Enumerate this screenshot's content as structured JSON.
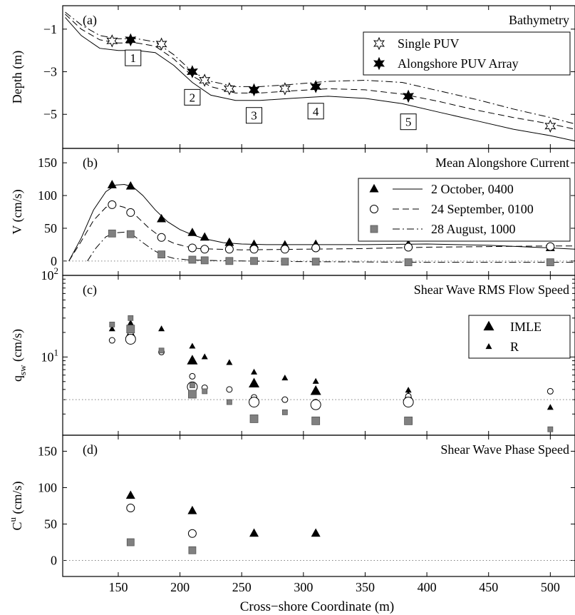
{
  "figure": {
    "xlabel": "Cross−shore Coordinate (m)",
    "xlim": [
      105,
      520
    ],
    "xticks": [
      150,
      200,
      250,
      300,
      350,
      400,
      450,
      500
    ],
    "colors": {
      "marker_open_fill": "#ffffff",
      "marker_gray": "#808080",
      "marker_black": "#000000",
      "zero_line": "#808080"
    }
  },
  "chart_data": [
    {
      "panel": "(a)",
      "type": "line",
      "title": "Bathymetry",
      "ylabel": "Depth (m)",
      "ylim": [
        -6.6,
        0.1
      ],
      "yticks": [
        -1,
        -3,
        -5
      ],
      "legend_placement": "top-right",
      "legend": [
        {
          "marker": "open-star",
          "label": "Single PUV"
        },
        {
          "marker": "filled-star",
          "label": "Alongshore PUV Array"
        }
      ],
      "profiles": [
        {
          "style": "solid",
          "x": [
            107,
            120,
            135,
            150,
            165,
            180,
            195,
            210,
            225,
            245,
            265,
            290,
            320,
            350,
            380,
            410,
            440,
            470,
            500,
            520
          ],
          "y": [
            -0.45,
            -1.3,
            -1.9,
            -2.0,
            -2.0,
            -2.1,
            -2.7,
            -3.5,
            -4.1,
            -4.35,
            -4.35,
            -4.25,
            -4.15,
            -4.25,
            -4.5,
            -4.9,
            -5.3,
            -5.7,
            -6.0,
            -6.25
          ]
        },
        {
          "style": "dashed",
          "x": [
            107,
            120,
            135,
            150,
            165,
            180,
            195,
            210,
            225,
            245,
            265,
            290,
            320,
            350,
            380,
            410,
            440,
            470,
            500,
            520
          ],
          "y": [
            -0.3,
            -1.0,
            -1.5,
            -1.65,
            -1.65,
            -1.8,
            -2.4,
            -3.2,
            -3.7,
            -4.0,
            -4.0,
            -3.9,
            -3.8,
            -3.85,
            -4.05,
            -4.4,
            -4.8,
            -5.15,
            -5.45,
            -5.7
          ]
        },
        {
          "style": "dashdot",
          "x": [
            107,
            120,
            135,
            150,
            165,
            180,
            195,
            210,
            225,
            245,
            265,
            290,
            320,
            350,
            380,
            410,
            440,
            470,
            500,
            520
          ],
          "y": [
            -0.2,
            -0.8,
            -1.3,
            -1.45,
            -1.45,
            -1.6,
            -2.2,
            -3.0,
            -3.45,
            -3.7,
            -3.7,
            -3.6,
            -3.45,
            -3.4,
            -3.5,
            -3.9,
            -4.3,
            -4.75,
            -5.15,
            -5.45
          ]
        }
      ],
      "single_puv": [
        {
          "x": 145,
          "y": -1.55
        },
        {
          "x": 185,
          "y": -1.7
        },
        {
          "x": 220,
          "y": -3.4
        },
        {
          "x": 240,
          "y": -3.8
        },
        {
          "x": 285,
          "y": -3.8
        },
        {
          "x": 500,
          "y": -5.55
        }
      ],
      "array_puv": [
        {
          "x": 160,
          "y": -1.5
        },
        {
          "x": 210,
          "y": -3.0
        },
        {
          "x": 260,
          "y": -3.85
        },
        {
          "x": 310,
          "y": -3.7
        },
        {
          "x": 385,
          "y": -4.15
        }
      ],
      "annotations": [
        {
          "text": "1",
          "x": 162,
          "y": -2.35
        },
        {
          "text": "2",
          "x": 210,
          "y": -4.2
        },
        {
          "text": "3",
          "x": 260,
          "y": -5.05
        },
        {
          "text": "4",
          "x": 310,
          "y": -4.85
        },
        {
          "text": "5",
          "x": 385,
          "y": -5.35
        }
      ]
    },
    {
      "panel": "(b)",
      "type": "line",
      "title": "Mean Alongshore Current",
      "ylabel": "V (cm/s)",
      "ylim": [
        -22,
        172
      ],
      "yticks": [
        0,
        50,
        100,
        150
      ],
      "legend_placement": "top-right",
      "series": [
        {
          "name": "2 October, 0400",
          "marker": "filled-triangle",
          "style": "solid",
          "points": [
            {
              "x": 145,
              "y": 116
            },
            {
              "x": 160,
              "y": 114
            },
            {
              "x": 185,
              "y": 64
            },
            {
              "x": 210,
              "y": 43
            },
            {
              "x": 220,
              "y": 36
            },
            {
              "x": 240,
              "y": 28
            },
            {
              "x": 260,
              "y": 25
            },
            {
              "x": 285,
              "y": 24
            },
            {
              "x": 310,
              "y": 25
            },
            {
              "x": 385,
              "y": 25
            },
            {
              "x": 500,
              "y": 20
            }
          ],
          "curve": {
            "x": [
              110,
              120,
              130,
              140,
              148,
              155,
              162,
              170,
              180,
              190,
              200,
              210,
              220,
              235,
              250,
              270,
              300,
              350,
              400,
              450,
              500,
              520
            ],
            "y": [
              0,
              35,
              78,
              106,
              116,
              117,
              113,
              100,
              78,
              60,
              48,
              40,
              34,
              28,
              26,
              25,
              25,
              25,
              26,
              24,
              20,
              18
            ]
          }
        },
        {
          "name": "24 September, 0100",
          "marker": "open-circle",
          "style": "dashed",
          "points": [
            {
              "x": 145,
              "y": 86
            },
            {
              "x": 160,
              "y": 74
            },
            {
              "x": 185,
              "y": 36
            },
            {
              "x": 210,
              "y": 20
            },
            {
              "x": 220,
              "y": 18
            },
            {
              "x": 240,
              "y": 18
            },
            {
              "x": 260,
              "y": 18
            },
            {
              "x": 285,
              "y": 18
            },
            {
              "x": 310,
              "y": 20
            },
            {
              "x": 385,
              "y": 21
            },
            {
              "x": 500,
              "y": 22
            }
          ],
          "curve": {
            "x": [
              110,
              120,
              130,
              140,
              147,
              155,
              165,
              175,
              185,
              195,
              205,
              215,
              230,
              250,
              300,
              350,
              400,
              450,
              500,
              520
            ],
            "y": [
              0,
              30,
              62,
              82,
              86,
              82,
              68,
              50,
              36,
              27,
              22,
              19,
              18,
              17,
              18,
              19,
              21,
              22,
              23,
              23
            ]
          }
        },
        {
          "name": "28 August, 1000",
          "marker": "gray-square",
          "style": "dashdot",
          "points": [
            {
              "x": 145,
              "y": 42
            },
            {
              "x": 160,
              "y": 41
            },
            {
              "x": 185,
              "y": 10
            },
            {
              "x": 210,
              "y": 2
            },
            {
              "x": 220,
              "y": 1
            },
            {
              "x": 240,
              "y": 0
            },
            {
              "x": 260,
              "y": 0
            },
            {
              "x": 285,
              "y": -1
            },
            {
              "x": 310,
              "y": -1
            },
            {
              "x": 385,
              "y": -2
            },
            {
              "x": 500,
              "y": -2
            }
          ],
          "curve": {
            "x": [
              125,
              132,
              140,
              147,
              155,
              163,
              170,
              178,
              186,
              195,
              205,
              220,
              250,
              300,
              400,
              500,
              520
            ],
            "y": [
              0,
              20,
              37,
              43,
              44,
              38,
              28,
              17,
              9,
              4,
              2,
              1,
              0,
              -1,
              -2,
              -2,
              -2
            ]
          }
        }
      ],
      "zero_line": true
    },
    {
      "panel": "(c)",
      "type": "scatter",
      "title": "Shear Wave RMS Flow Speed",
      "ylabel": "q_sw (cm/s)",
      "yscale": "log",
      "ylim": [
        1.1,
        100
      ],
      "yticks": [
        {
          "value": 10,
          "base": "10",
          "exp": "1"
        },
        {
          "value": 100,
          "base": "10",
          "exp": "2"
        }
      ],
      "legend_placement": "top-right",
      "legend": [
        {
          "marker": "big-triangle",
          "label": "IMLE"
        },
        {
          "marker": "small-triangle",
          "label": "R"
        }
      ],
      "reference_line": 3.0,
      "groups": [
        {
          "marker": "small-triangle",
          "method": "R",
          "points": [
            {
              "x": 145,
              "y": 22
            },
            {
              "x": 160,
              "y": 26
            },
            {
              "x": 185,
              "y": 22
            },
            {
              "x": 210,
              "y": 13.5
            },
            {
              "x": 220,
              "y": 10
            },
            {
              "x": 240,
              "y": 8.5
            },
            {
              "x": 260,
              "y": 6.5
            },
            {
              "x": 285,
              "y": 5.5
            },
            {
              "x": 310,
              "y": 5.0
            },
            {
              "x": 385,
              "y": 3.9
            },
            {
              "x": 500,
              "y": 2.4
            }
          ]
        },
        {
          "marker": "big-triangle",
          "method": "IMLE",
          "points": [
            {
              "x": 160,
              "y": 19
            },
            {
              "x": 210,
              "y": 9
            },
            {
              "x": 260,
              "y": 4.7
            },
            {
              "x": 310,
              "y": 3.8
            },
            {
              "x": 385,
              "y": 3.2
            }
          ]
        },
        {
          "marker": "small-circle",
          "method": "R",
          "points": [
            {
              "x": 145,
              "y": 16
            },
            {
              "x": 160,
              "y": 20
            },
            {
              "x": 185,
              "y": 11.5
            },
            {
              "x": 210,
              "y": 5.8
            },
            {
              "x": 220,
              "y": 4.2
            },
            {
              "x": 240,
              "y": 4.0
            },
            {
              "x": 260,
              "y": 3.2
            },
            {
              "x": 285,
              "y": 3.0
            },
            {
              "x": 310,
              "y": 2.8
            },
            {
              "x": 385,
              "y": 3.3
            },
            {
              "x": 500,
              "y": 3.8
            }
          ]
        },
        {
          "marker": "big-circle",
          "method": "IMLE",
          "points": [
            {
              "x": 160,
              "y": 16.5
            },
            {
              "x": 210,
              "y": 4.3
            },
            {
              "x": 260,
              "y": 2.8
            },
            {
              "x": 310,
              "y": 2.6
            },
            {
              "x": 385,
              "y": 2.8
            }
          ]
        },
        {
          "marker": "small-square",
          "method": "R",
          "points": [
            {
              "x": 145,
              "y": 25
            },
            {
              "x": 160,
              "y": 30
            },
            {
              "x": 185,
              "y": 12
            },
            {
              "x": 210,
              "y": 4.5
            },
            {
              "x": 220,
              "y": 3.8
            },
            {
              "x": 240,
              "y": 2.8
            },
            {
              "x": 260,
              "y": 1.8
            },
            {
              "x": 285,
              "y": 2.1
            },
            {
              "x": 310,
              "y": 1.7
            },
            {
              "x": 385,
              "y": 1.6
            },
            {
              "x": 500,
              "y": 1.3
            }
          ]
        },
        {
          "marker": "big-square",
          "method": "IMLE",
          "points": [
            {
              "x": 160,
              "y": 22
            },
            {
              "x": 210,
              "y": 3.5
            },
            {
              "x": 260,
              "y": 1.75
            },
            {
              "x": 310,
              "y": 1.65
            },
            {
              "x": 385,
              "y": 1.65
            }
          ]
        }
      ]
    },
    {
      "panel": "(d)",
      "type": "scatter",
      "title": "Shear Wave Phase Speed",
      "ylabel": "C^u (cm/s)",
      "ylim": [
        -22,
        172
      ],
      "yticks": [
        0,
        50,
        100,
        150
      ],
      "zero_line": true,
      "groups": [
        {
          "marker": "filled-triangle",
          "points": [
            {
              "x": 160,
              "y": 89
            },
            {
              "x": 210,
              "y": 68
            },
            {
              "x": 260,
              "y": 37
            },
            {
              "x": 310,
              "y": 37
            }
          ]
        },
        {
          "marker": "open-circle",
          "points": [
            {
              "x": 160,
              "y": 72
            },
            {
              "x": 210,
              "y": 37
            }
          ]
        },
        {
          "marker": "gray-square",
          "points": [
            {
              "x": 160,
              "y": 25
            },
            {
              "x": 210,
              "y": 14
            }
          ]
        }
      ]
    }
  ]
}
